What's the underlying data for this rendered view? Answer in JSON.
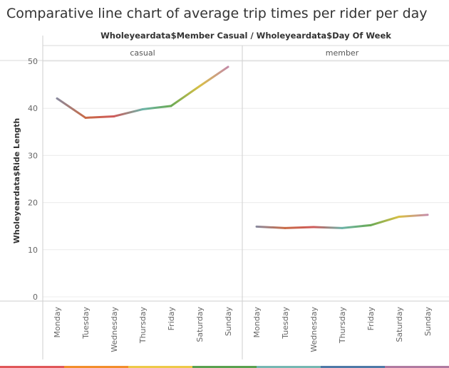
{
  "title": "Comparative line chart of average trip times per rider per day",
  "chart_data": {
    "type": "line",
    "facet_header": "Wholeyeardata$Member Casual  /  Wholeyeardata$Day Of Week",
    "ylabel": "Wholeyeardata$Ride Length",
    "ylim": [
      0,
      52
    ],
    "yticks": [
      0,
      10,
      20,
      30,
      40,
      50
    ],
    "grid": true,
    "categories": [
      "Monday",
      "Tuesday",
      "Wednesday",
      "Thursday",
      "Friday",
      "Saturday",
      "Sunday"
    ],
    "panels": [
      {
        "label": "casual",
        "values": [
          42.1,
          38.0,
          38.3,
          39.8,
          40.5,
          44.7,
          48.8
        ]
      },
      {
        "label": "member",
        "values": [
          14.9,
          14.6,
          14.8,
          14.6,
          15.2,
          17.0,
          17.4
        ]
      }
    ],
    "segment_colors": [
      "#8a8a9e",
      "#c96a45",
      "#cf5a5a",
      "#6bb3a8",
      "#6aaa55",
      "#d9bf45",
      "#c48aa8"
    ]
  }
}
